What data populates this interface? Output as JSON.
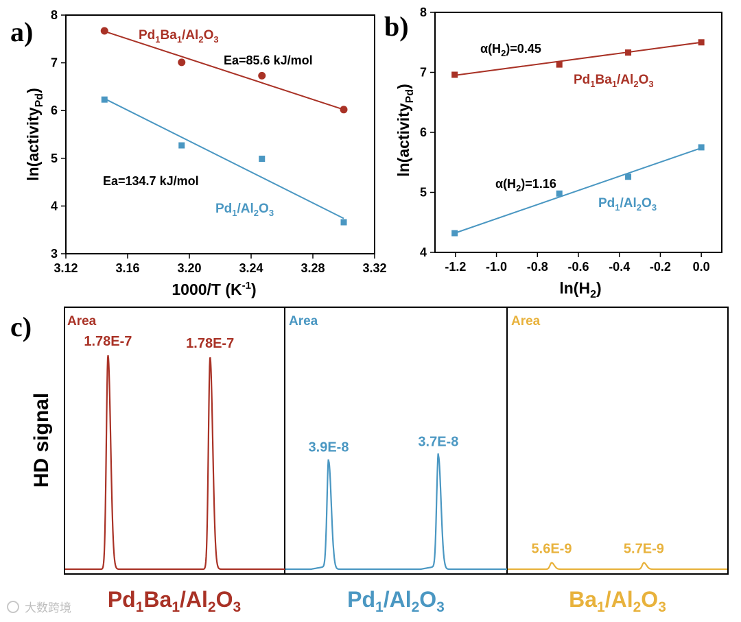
{
  "colors": {
    "red": "#a93226",
    "blue": "#4a97c2",
    "gold": "#e8b23c"
  },
  "chart_data": [
    {
      "panel": "a)",
      "type": "scatter",
      "title": "",
      "xlabel": "1000/T (K",
      "xlabel_sup": "-1",
      "xlabel_tail": ")",
      "ylabel": "ln(activity",
      "ylabel_sub": "Pd",
      "ylabel_tail": ")",
      "xlim": [
        3.12,
        3.32
      ],
      "ylim": [
        3,
        8
      ],
      "xticks": [
        "3.12",
        "3.16",
        "3.20",
        "3.24",
        "3.28",
        "3.32"
      ],
      "yticks": [
        "3",
        "4",
        "5",
        "6",
        "7",
        "8"
      ],
      "series": [
        {
          "name": "Pd1Ba1/Al2O3",
          "color_key": "red",
          "marker": "circle",
          "x": [
            3.145,
            3.195,
            3.247,
            3.3
          ],
          "y": [
            7.67,
            7.01,
            6.73,
            6.02
          ],
          "fit": [
            [
              3.145,
              7.66
            ],
            [
              3.3,
              6.02
            ]
          ],
          "label_parts": [
            "Pd",
            "1",
            "Ba",
            "1",
            "/Al",
            "2",
            "O",
            "3"
          ],
          "ea": "Ea=85.6 kJ/mol"
        },
        {
          "name": "Pd1/Al2O3",
          "color_key": "blue",
          "marker": "square",
          "x": [
            3.145,
            3.195,
            3.247,
            3.3
          ],
          "y": [
            6.23,
            5.27,
            4.99,
            3.66
          ],
          "fit": [
            [
              3.145,
              6.25
            ],
            [
              3.3,
              3.74
            ]
          ],
          "label_parts": [
            "Pd",
            "1",
            "/Al",
            "2",
            "O",
            "3"
          ],
          "ea": "Ea=134.7 kJ/mol"
        }
      ]
    },
    {
      "panel": "b)",
      "type": "scatter",
      "title": "",
      "xlabel": "ln(H",
      "xlabel_sub": "2",
      "xlabel_tail": ")",
      "ylabel": "ln(activity",
      "ylabel_sub": "Pd",
      "ylabel_tail": ")",
      "xlim": [
        -1.3,
        0.1
      ],
      "ylim": [
        4,
        8
      ],
      "xticks": [
        "-1.2",
        "-1.0",
        "-0.8",
        "-0.6",
        "-0.4",
        "-0.2",
        "0.0"
      ],
      "yticks": [
        "4",
        "5",
        "6",
        "7",
        "8"
      ],
      "series": [
        {
          "name": "Pd1Ba1/Al2O3",
          "color_key": "red",
          "marker": "square",
          "x": [
            -1.204,
            -0.693,
            -0.357,
            0.0
          ],
          "y": [
            6.96,
            7.13,
            7.33,
            7.5
          ],
          "fit": [
            [
              -1.204,
              6.95
            ],
            [
              0.0,
              7.5
            ]
          ],
          "label_parts": [
            "Pd",
            "1",
            "Ba",
            "1",
            "/Al",
            "2",
            "O",
            "3"
          ],
          "alpha": "α(H",
          "alpha_sub": "2",
          "alpha_tail": ")=0.45"
        },
        {
          "name": "Pd1/Al2O3",
          "color_key": "blue",
          "marker": "square",
          "x": [
            -1.204,
            -0.693,
            -0.357,
            0.0
          ],
          "y": [
            4.32,
            4.98,
            5.26,
            5.75
          ],
          "fit": [
            [
              -1.204,
              4.32
            ],
            [
              0.0,
              5.74
            ]
          ],
          "label_parts": [
            "Pd",
            "1",
            "/Al",
            "2",
            "O",
            "3"
          ],
          "alpha": "α(H",
          "alpha_sub": "2",
          "alpha_tail": ")=1.16"
        }
      ]
    },
    {
      "panel": "c)",
      "type": "line",
      "ylabel": "HD signal",
      "area_label": "Area",
      "note": "relative peak heights (fraction of tallest peak)",
      "panels": [
        {
          "name": "Pd1Ba1/Al2O3",
          "color_key": "red",
          "label_parts": [
            "Pd",
            "1",
            "Ba",
            "1",
            "/Al",
            "2",
            "O",
            "3"
          ],
          "peaks": [
            {
              "center": 0.195,
              "height": 1.0,
              "label": "1.78E-7"
            },
            {
              "center": 0.66,
              "height": 0.99,
              "label": "1.78E-7"
            }
          ]
        },
        {
          "name": "Pd1/Al2O3",
          "color_key": "blue",
          "label_parts": [
            "Pd",
            "1",
            "/Al",
            "2",
            "O",
            "3"
          ],
          "peaks": [
            {
              "center": 0.195,
              "height": 0.505,
              "label": "3.9E-8"
            },
            {
              "center": 0.69,
              "height": 0.53,
              "label": "3.7E-8"
            }
          ]
        },
        {
          "name": "Ba1/Al2O3",
          "color_key": "gold",
          "label_parts": [
            "Ba",
            "1",
            "/Al",
            "2",
            "O",
            "3"
          ],
          "peaks": [
            {
              "center": 0.2,
              "height": 0.03,
              "label": "5.6E-9"
            },
            {
              "center": 0.62,
              "height": 0.03,
              "label": "5.7E-9"
            }
          ]
        }
      ]
    }
  ],
  "watermark": "大数跨境"
}
